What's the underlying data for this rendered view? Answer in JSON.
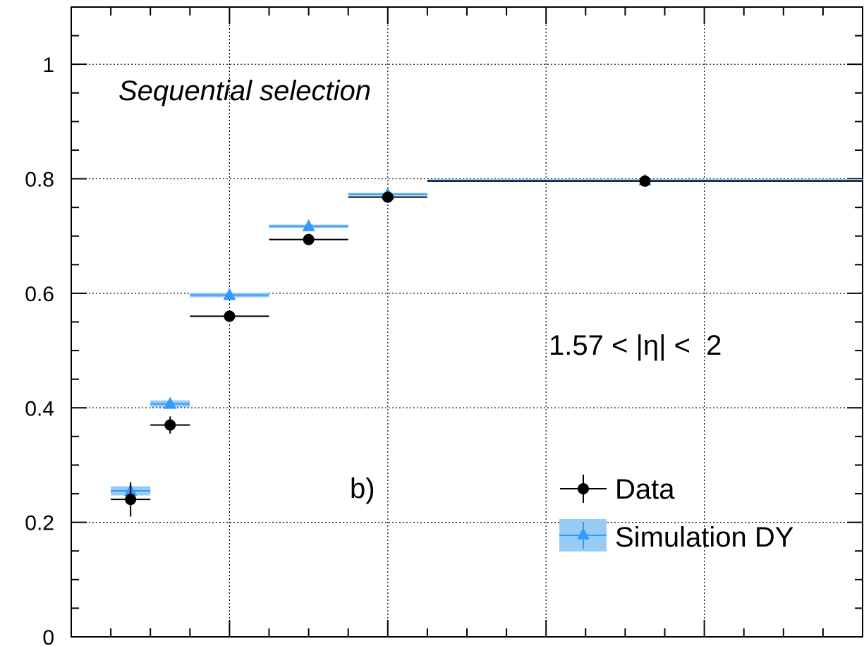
{
  "chart_data": {
    "type": "scatter",
    "title": "",
    "xlabel": "",
    "ylabel": "",
    "ylim": [
      0,
      1.1
    ],
    "yticks": [
      "0",
      "0.2",
      "0.4",
      "0.6",
      "0.8",
      "1"
    ],
    "grid": true,
    "legend_position": "bottom-right",
    "annotations": {
      "selection": "Sequential selection",
      "eta_range": "1.57 < |η| <  2",
      "panel": "b)"
    },
    "series": [
      {
        "name": "Data",
        "color": "#000000",
        "marker": "circle",
        "points": [
          {
            "xlo": 5,
            "xhi": 10,
            "y": 0.24,
            "err": 0.03
          },
          {
            "xlo": 10,
            "xhi": 15,
            "y": 0.37,
            "err": 0.015
          },
          {
            "xlo": 15,
            "xhi": 25,
            "y": 0.56,
            "err": 0.008
          },
          {
            "xlo": 25,
            "xhi": 35,
            "y": 0.694,
            "err": 0.005
          },
          {
            "xlo": 35,
            "xhi": 45,
            "y": 0.768,
            "err": 0.004
          },
          {
            "xlo": 45,
            "xhi": 100,
            "y": 0.796,
            "err": 0.002
          }
        ]
      },
      {
        "name": "Simulation DY",
        "color": "#3399ff",
        "band_color": "#99ccf5",
        "marker": "triangle",
        "points": [
          {
            "xlo": 5,
            "xhi": 10,
            "y": 0.255,
            "err": 0.008
          },
          {
            "xlo": 10,
            "xhi": 15,
            "y": 0.407,
            "err": 0.006
          },
          {
            "xlo": 15,
            "xhi": 25,
            "y": 0.597,
            "err": 0.004
          },
          {
            "xlo": 25,
            "xhi": 35,
            "y": 0.717,
            "err": 0.003
          },
          {
            "xlo": 35,
            "xhi": 45,
            "y": 0.773,
            "err": 0.002
          },
          {
            "xlo": 45,
            "xhi": 100,
            "y": 0.797,
            "err": 0.002
          }
        ]
      }
    ]
  }
}
